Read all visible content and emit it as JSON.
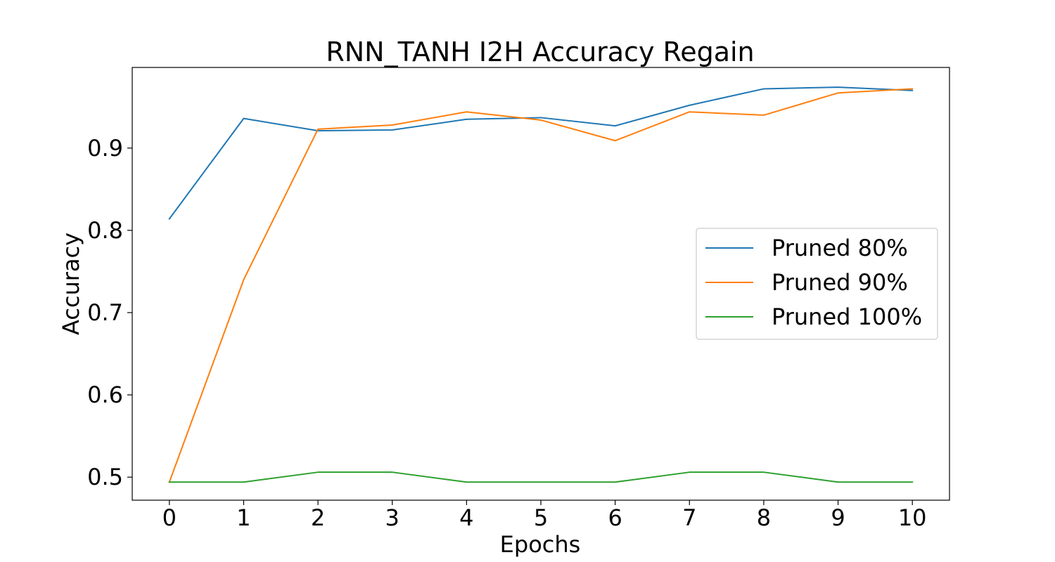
{
  "chart_data": {
    "type": "line",
    "title": "RNN_TANH I2H Accuracy Regain",
    "xlabel": "Epochs",
    "ylabel": "Accuracy",
    "x": [
      0,
      1,
      2,
      3,
      4,
      5,
      6,
      7,
      8,
      9,
      10
    ],
    "xticks": [
      "0",
      "1",
      "2",
      "3",
      "4",
      "5",
      "6",
      "7",
      "8",
      "9",
      "10"
    ],
    "yticks": [
      0.5,
      0.6,
      0.7,
      0.8,
      0.9
    ],
    "ytick_labels": [
      "0.5",
      "0.6",
      "0.7",
      "0.8",
      "0.9"
    ],
    "xlim": [
      -0.5,
      10.5
    ],
    "ylim": [
      0.472,
      0.998
    ],
    "grid": false,
    "legend_position": "center-right",
    "series": [
      {
        "name": "Pruned 80%",
        "color": "#1f77b4",
        "values": [
          0.814,
          0.936,
          0.921,
          0.922,
          0.935,
          0.937,
          0.927,
          0.952,
          0.972,
          0.974,
          0.97
        ]
      },
      {
        "name": "Pruned 90%",
        "color": "#ff7f0e",
        "values": [
          0.494,
          0.74,
          0.923,
          0.928,
          0.944,
          0.934,
          0.909,
          0.944,
          0.94,
          0.967,
          0.972
        ]
      },
      {
        "name": "Pruned 100%",
        "color": "#2ca02c",
        "values": [
          0.494,
          0.494,
          0.506,
          0.506,
          0.494,
          0.494,
          0.494,
          0.506,
          0.506,
          0.494,
          0.494
        ]
      }
    ]
  }
}
